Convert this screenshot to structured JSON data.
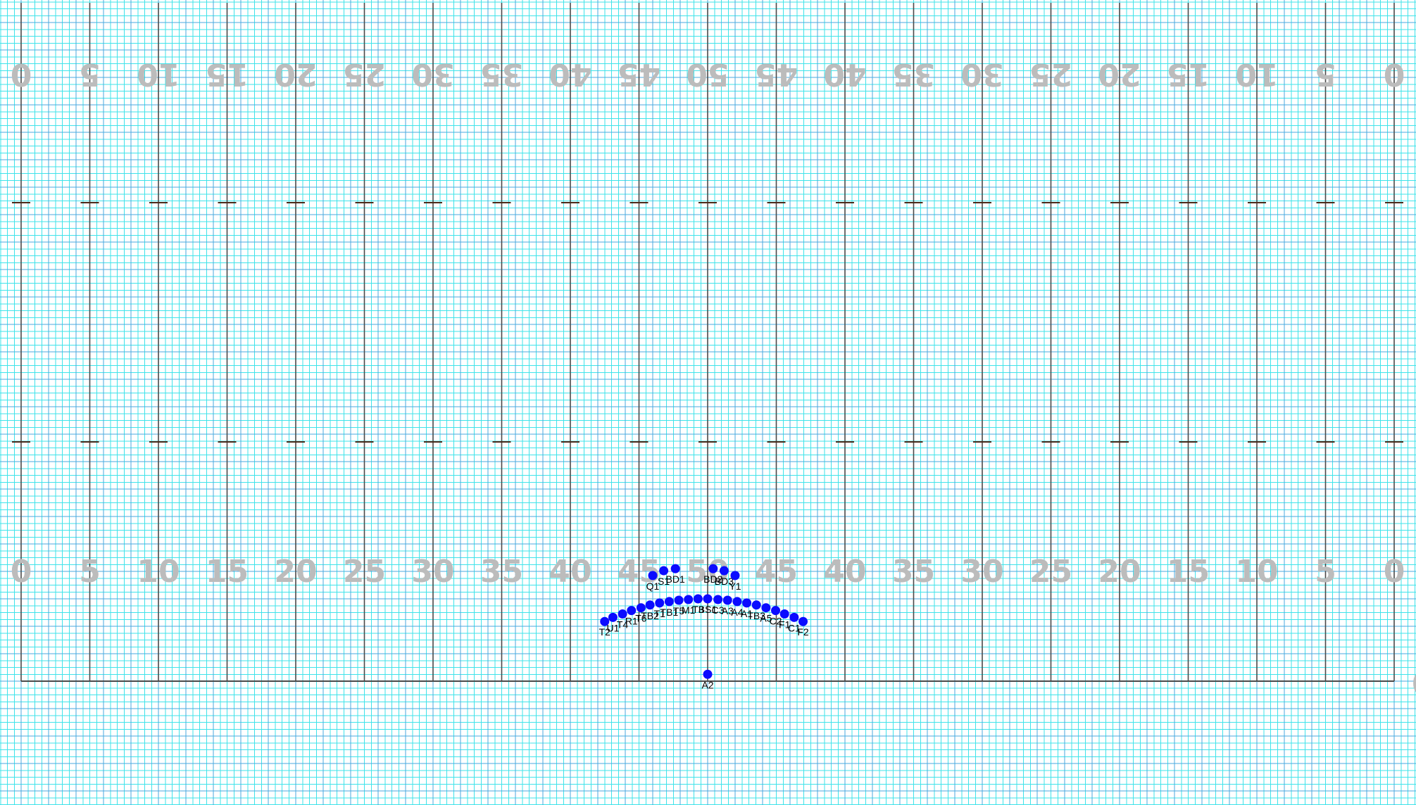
{
  "colors": {
    "background": "#ffffff",
    "grid_minor": "#3fe3ea",
    "grid_major": "#4aa8df",
    "yard_line": "#4a4a4a",
    "hash_mark": "#4a2a1a",
    "yard_number": "#bcbcbc",
    "marcher_dot": "#0b0bff",
    "marcher_label": "#000000"
  },
  "field": {
    "yard_numbers_bottom": [
      "0",
      "5",
      "10",
      "15",
      "20",
      "25",
      "30",
      "35",
      "40",
      "45",
      "50",
      "45",
      "40",
      "35",
      "30",
      "25",
      "20",
      "15",
      "10",
      "5",
      "0"
    ],
    "yard_numbers_top": [
      "0",
      "5",
      "10",
      "15",
      "20",
      "25",
      "30",
      "35",
      "40",
      "45",
      "50",
      "45",
      "40",
      "35",
      "30",
      "25",
      "20",
      "15",
      "10",
      "5",
      "0"
    ],
    "edge_mark": "0"
  },
  "marchers": [
    {
      "label": "Q1",
      "x": -8,
      "y": -11.5
    },
    {
      "label": "S1",
      "x": -6.4,
      "y": -12.2
    },
    {
      "label": "BD1",
      "x": -4.7,
      "y": -12.5
    },
    {
      "label": "BD2",
      "x": 0.8,
      "y": -12.5
    },
    {
      "label": "BD3",
      "x": 2.4,
      "y": -12.2
    },
    {
      "label": "Y1",
      "x": 4,
      "y": -11.5
    },
    {
      "label": "T2",
      "x": -15,
      "y": -4.8
    },
    {
      "label": "U1",
      "x": -13.8,
      "y": -5.4
    },
    {
      "label": "T4",
      "x": -12.4,
      "y": -5.9
    },
    {
      "label": "R1",
      "x": -11.1,
      "y": -6.4
    },
    {
      "label": "T6",
      "x": -9.7,
      "y": -6.8
    },
    {
      "label": "TB2",
      "x": -8.4,
      "y": -7.2
    },
    {
      "label": "T1",
      "x": -7,
      "y": -7.5
    },
    {
      "label": "TB1",
      "x": -5.6,
      "y": -7.7
    },
    {
      "label": "T5",
      "x": -4.2,
      "y": -7.9
    },
    {
      "label": "M1",
      "x": -2.8,
      "y": -8.0
    },
    {
      "label": "T3",
      "x": -1.4,
      "y": -8.1
    },
    {
      "label": "BS1",
      "x": 0,
      "y": -8.1
    },
    {
      "label": "C3",
      "x": 1.5,
      "y": -8.0
    },
    {
      "label": "A3",
      "x": 2.9,
      "y": -7.9
    },
    {
      "label": "A4",
      "x": 4.3,
      "y": -7.7
    },
    {
      "label": "A1",
      "x": 5.7,
      "y": -7.5
    },
    {
      "label": "TB3",
      "x": 7.1,
      "y": -7.2
    },
    {
      "label": "A5",
      "x": 8.5,
      "y": -6.8
    },
    {
      "label": "C2",
      "x": 9.9,
      "y": -6.4
    },
    {
      "label": "F1",
      "x": 11.2,
      "y": -5.9
    },
    {
      "label": "C1",
      "x": 12.6,
      "y": -5.4
    },
    {
      "label": "F2",
      "x": 13.9,
      "y": -4.8
    },
    {
      "label": "A2",
      "x": 0,
      "y": 2.9
    }
  ]
}
